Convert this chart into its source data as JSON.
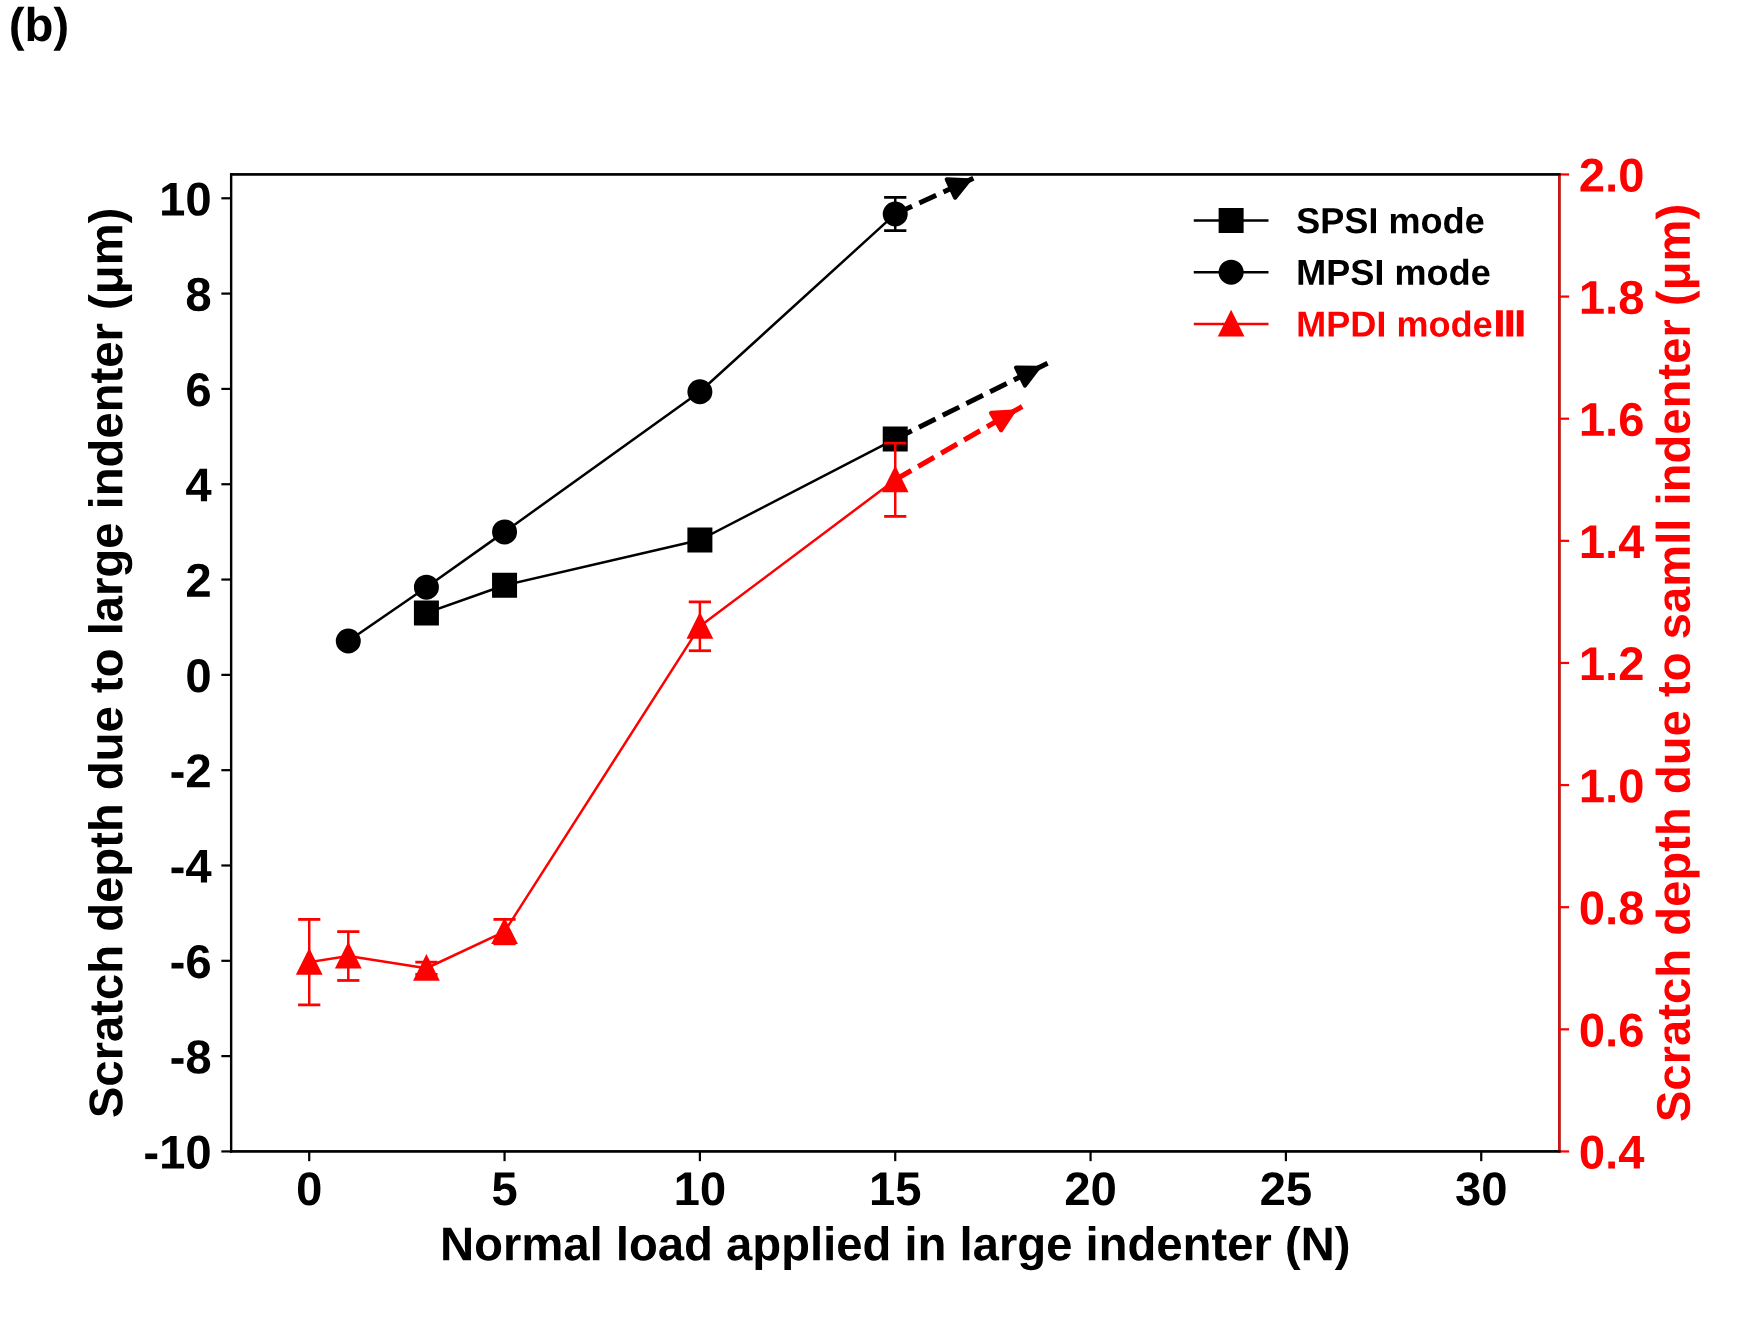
{
  "chart_data": {
    "type": "line",
    "xlabel": "Normal load applied in large indenter (N)",
    "ylabel": "Scratch depth due to large indenter (μm)",
    "y2label": "Scratch depth due to samll indenter (μm)",
    "annotations": [
      "(b)"
    ],
    "xlim": [
      -2,
      32
    ],
    "xticks": [
      0,
      5,
      10,
      15,
      20,
      25,
      30
    ],
    "ylim": [
      -10,
      10.5
    ],
    "yticks": [
      -10,
      -8,
      -6,
      -4,
      -2,
      0,
      2,
      4,
      6,
      8,
      10
    ],
    "y2lim": [
      0.4,
      2.0
    ],
    "y2ticks": [
      {
        "value": 0.4,
        "label": "0.4"
      },
      {
        "value": 0.6,
        "label": "0.6"
      },
      {
        "value": 0.8,
        "label": "0.8"
      },
      {
        "value": 1.0,
        "label": "1.0"
      },
      {
        "value": 1.2,
        "label": "1.2"
      },
      {
        "value": 1.4,
        "label": "1.4"
      },
      {
        "value": 1.6,
        "label": "1.6"
      },
      {
        "value": 1.8,
        "label": "1.8"
      },
      {
        "value": 2.0,
        "label": "2.0"
      }
    ],
    "grid": false,
    "legend": "top right",
    "line_style": "solid",
    "series": [
      {
        "name": "SPSI mode",
        "color": "#000000",
        "marker": "square",
        "x": [
          3,
          5,
          10,
          15
        ],
        "values": [
          1.3,
          1.88,
          2.83,
          4.95
        ]
      },
      {
        "name": "MPSI mode",
        "color": "#000000",
        "marker": "circle",
        "x": [
          1,
          3,
          5,
          10,
          15
        ],
        "values": [
          0.71,
          1.84,
          3.0,
          5.94,
          9.67
        ],
        "errors": [
          null,
          null,
          null,
          null,
          0.35
        ]
      },
      {
        "name": "MPDI modeⅢ",
        "color": "#ff0000",
        "marker": "triangle",
        "axis": "y2",
        "x": [
          0,
          1,
          3,
          5,
          10,
          15
        ],
        "values": [
          0.71,
          0.72,
          0.7,
          0.76,
          1.26,
          1.5
        ],
        "errors": [
          0.07,
          0.04,
          0.01,
          0.02,
          0.04,
          0.06
        ]
      },
      {
        "type": "line",
        "color": "#000000",
        "line_style": "dashed",
        "x": [
          15,
          18.9
        ],
        "values": [
          4.95,
          6.54
        ]
      },
      {
        "type": "line",
        "color": "#000000",
        "line_style": "dashed",
        "x": [
          15,
          17.0
        ],
        "values": [
          9.67,
          10.42
        ]
      },
      {
        "type": "line",
        "color": "#ff0000",
        "line_style": "dashed",
        "axis": "y2",
        "x": [
          15,
          18.25
        ],
        "values": [
          1.5,
          1.62
        ]
      }
    ]
  }
}
